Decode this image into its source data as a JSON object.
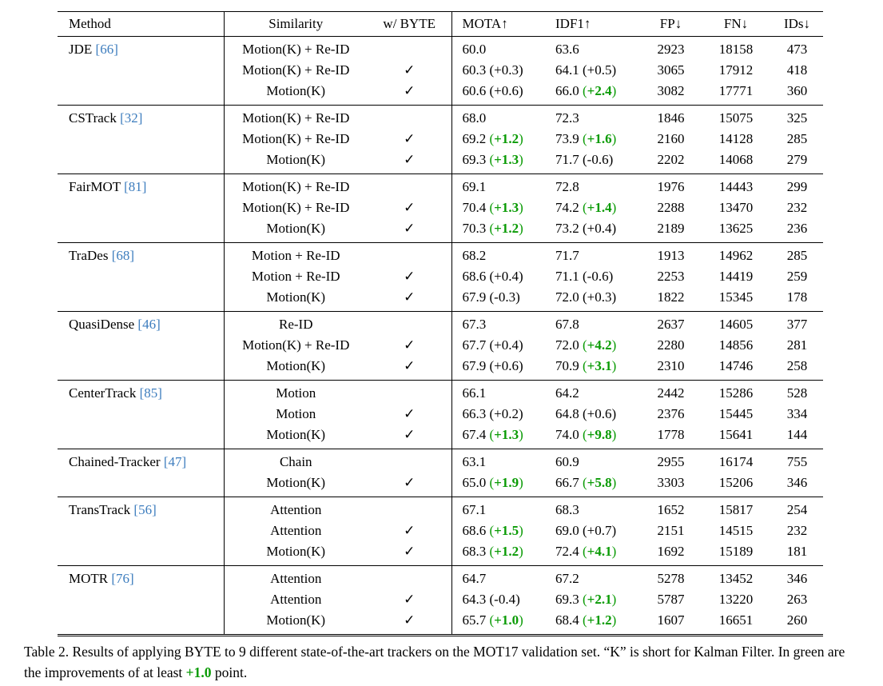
{
  "table": {
    "check_glyph": "✓",
    "columns": [
      "Method",
      "Similarity",
      "w/ BYTE",
      "MOTA↑",
      "IDF1↑",
      "FP↓",
      "FN↓",
      "IDs↓"
    ],
    "groups": [
      {
        "method": "JDE",
        "ref": "66",
        "rows": [
          {
            "sim": "Motion(K) + Re-ID",
            "byte": false,
            "mota": "60.0",
            "mota_d": null,
            "mota_g": false,
            "idf1": "63.6",
            "idf1_d": null,
            "idf1_g": false,
            "fp": "2923",
            "fn": "18158",
            "ids": "473"
          },
          {
            "sim": "Motion(K) + Re-ID",
            "byte": true,
            "mota": "60.3",
            "mota_d": "+0.3",
            "mota_g": false,
            "idf1": "64.1",
            "idf1_d": "+0.5",
            "idf1_g": false,
            "fp": "3065",
            "fn": "17912",
            "ids": "418"
          },
          {
            "sim": "Motion(K)",
            "byte": true,
            "mota": "60.6",
            "mota_d": "+0.6",
            "mota_g": false,
            "idf1": "66.0",
            "idf1_d": "+2.4",
            "idf1_g": true,
            "fp": "3082",
            "fn": "17771",
            "ids": "360"
          }
        ]
      },
      {
        "method": "CSTrack",
        "ref": "32",
        "rows": [
          {
            "sim": "Motion(K) + Re-ID",
            "byte": false,
            "mota": "68.0",
            "mota_d": null,
            "mota_g": false,
            "idf1": "72.3",
            "idf1_d": null,
            "idf1_g": false,
            "fp": "1846",
            "fn": "15075",
            "ids": "325"
          },
          {
            "sim": "Motion(K) + Re-ID",
            "byte": true,
            "mota": "69.2",
            "mota_d": "+1.2",
            "mota_g": true,
            "idf1": "73.9",
            "idf1_d": "+1.6",
            "idf1_g": true,
            "fp": "2160",
            "fn": "14128",
            "ids": "285"
          },
          {
            "sim": "Motion(K)",
            "byte": true,
            "mota": "69.3",
            "mota_d": "+1.3",
            "mota_g": true,
            "idf1": "71.7",
            "idf1_d": "-0.6",
            "idf1_g": false,
            "fp": "2202",
            "fn": "14068",
            "ids": "279"
          }
        ]
      },
      {
        "method": "FairMOT",
        "ref": "81",
        "rows": [
          {
            "sim": "Motion(K) + Re-ID",
            "byte": false,
            "mota": "69.1",
            "mota_d": null,
            "mota_g": false,
            "idf1": "72.8",
            "idf1_d": null,
            "idf1_g": false,
            "fp": "1976",
            "fn": "14443",
            "ids": "299"
          },
          {
            "sim": "Motion(K) + Re-ID",
            "byte": true,
            "mota": "70.4",
            "mota_d": "+1.3",
            "mota_g": true,
            "idf1": "74.2",
            "idf1_d": "+1.4",
            "idf1_g": true,
            "fp": "2288",
            "fn": "13470",
            "ids": "232"
          },
          {
            "sim": "Motion(K)",
            "byte": true,
            "mota": "70.3",
            "mota_d": "+1.2",
            "mota_g": true,
            "idf1": "73.2",
            "idf1_d": "+0.4",
            "idf1_g": false,
            "fp": "2189",
            "fn": "13625",
            "ids": "236"
          }
        ]
      },
      {
        "method": "TraDes",
        "ref": "68",
        "rows": [
          {
            "sim": "Motion + Re-ID",
            "byte": false,
            "mota": "68.2",
            "mota_d": null,
            "mota_g": false,
            "idf1": "71.7",
            "idf1_d": null,
            "idf1_g": false,
            "fp": "1913",
            "fn": "14962",
            "ids": "285"
          },
          {
            "sim": "Motion + Re-ID",
            "byte": true,
            "mota": "68.6",
            "mota_d": "+0.4",
            "mota_g": false,
            "idf1": "71.1",
            "idf1_d": "-0.6",
            "idf1_g": false,
            "fp": "2253",
            "fn": "14419",
            "ids": "259"
          },
          {
            "sim": "Motion(K)",
            "byte": true,
            "mota": "67.9",
            "mota_d": "-0.3",
            "mota_g": false,
            "idf1": "72.0",
            "idf1_d": "+0.3",
            "idf1_g": false,
            "fp": "1822",
            "fn": "15345",
            "ids": "178"
          }
        ]
      },
      {
        "method": "QuasiDense",
        "ref": "46",
        "rows": [
          {
            "sim": "Re-ID",
            "byte": false,
            "mota": "67.3",
            "mota_d": null,
            "mota_g": false,
            "idf1": "67.8",
            "idf1_d": null,
            "idf1_g": false,
            "fp": "2637",
            "fn": "14605",
            "ids": "377"
          },
          {
            "sim": "Motion(K) + Re-ID",
            "byte": true,
            "mota": "67.7",
            "mota_d": "+0.4",
            "mota_g": false,
            "idf1": "72.0",
            "idf1_d": "+4.2",
            "idf1_g": true,
            "fp": "2280",
            "fn": "14856",
            "ids": "281"
          },
          {
            "sim": "Motion(K)",
            "byte": true,
            "mota": "67.9",
            "mota_d": "+0.6",
            "mota_g": false,
            "idf1": "70.9",
            "idf1_d": "+3.1",
            "idf1_g": true,
            "fp": "2310",
            "fn": "14746",
            "ids": "258"
          }
        ]
      },
      {
        "method": "CenterTrack",
        "ref": "85",
        "rows": [
          {
            "sim": "Motion",
            "byte": false,
            "mota": "66.1",
            "mota_d": null,
            "mota_g": false,
            "idf1": "64.2",
            "idf1_d": null,
            "idf1_g": false,
            "fp": "2442",
            "fn": "15286",
            "ids": "528"
          },
          {
            "sim": "Motion",
            "byte": true,
            "mota": "66.3",
            "mota_d": "+0.2",
            "mota_g": false,
            "idf1": "64.8",
            "idf1_d": "+0.6",
            "idf1_g": false,
            "fp": "2376",
            "fn": "15445",
            "ids": "334"
          },
          {
            "sim": "Motion(K)",
            "byte": true,
            "mota": "67.4",
            "mota_d": "+1.3",
            "mota_g": true,
            "idf1": "74.0",
            "idf1_d": "+9.8",
            "idf1_g": true,
            "fp": "1778",
            "fn": "15641",
            "ids": "144"
          }
        ]
      },
      {
        "method": "Chained-Tracker",
        "ref": "47",
        "rows": [
          {
            "sim": "Chain",
            "byte": false,
            "mota": "63.1",
            "mota_d": null,
            "mota_g": false,
            "idf1": "60.9",
            "idf1_d": null,
            "idf1_g": false,
            "fp": "2955",
            "fn": "16174",
            "ids": "755"
          },
          {
            "sim": "Motion(K)",
            "byte": true,
            "mota": "65.0",
            "mota_d": "+1.9",
            "mota_g": true,
            "idf1": "66.7",
            "idf1_d": "+5.8",
            "idf1_g": true,
            "fp": "3303",
            "fn": "15206",
            "ids": "346"
          }
        ]
      },
      {
        "method": "TransTrack",
        "ref": "56",
        "rows": [
          {
            "sim": "Attention",
            "byte": false,
            "mota": "67.1",
            "mota_d": null,
            "mota_g": false,
            "idf1": "68.3",
            "idf1_d": null,
            "idf1_g": false,
            "fp": "1652",
            "fn": "15817",
            "ids": "254"
          },
          {
            "sim": "Attention",
            "byte": true,
            "mota": "68.6",
            "mota_d": "+1.5",
            "mota_g": true,
            "idf1": "69.0",
            "idf1_d": "+0.7",
            "idf1_g": false,
            "fp": "2151",
            "fn": "14515",
            "ids": "232"
          },
          {
            "sim": "Motion(K)",
            "byte": true,
            "mota": "68.3",
            "mota_d": "+1.2",
            "mota_g": true,
            "idf1": "72.4",
            "idf1_d": "+4.1",
            "idf1_g": true,
            "fp": "1692",
            "fn": "15189",
            "ids": "181"
          }
        ]
      },
      {
        "method": "MOTR",
        "ref": "76",
        "rows": [
          {
            "sim": "Attention",
            "byte": false,
            "mota": "64.7",
            "mota_d": null,
            "mota_g": false,
            "idf1": "67.2",
            "idf1_d": null,
            "idf1_g": false,
            "fp": "5278",
            "fn": "13452",
            "ids": "346"
          },
          {
            "sim": "Attention",
            "byte": true,
            "mota": "64.3",
            "mota_d": "-0.4",
            "mota_g": false,
            "idf1": "69.3",
            "idf1_d": "+2.1",
            "idf1_g": true,
            "fp": "5787",
            "fn": "13220",
            "ids": "263"
          },
          {
            "sim": "Motion(K)",
            "byte": true,
            "mota": "65.7",
            "mota_d": "+1.0",
            "mota_g": true,
            "idf1": "68.4",
            "idf1_d": "+1.2",
            "idf1_g": true,
            "fp": "1607",
            "fn": "16651",
            "ids": "260"
          }
        ]
      }
    ]
  },
  "caption": {
    "before": "Table 2. Results of applying BYTE to 9 different state-of-the-art trackers on the MOT17 validation set. “K” is short for Kalman Filter. In green are the improvements of at least ",
    "green": "+1.0",
    "after": " point."
  },
  "colors": {
    "improvement_green": "#0a9b05",
    "citation_blue": "#3d7dbe"
  }
}
